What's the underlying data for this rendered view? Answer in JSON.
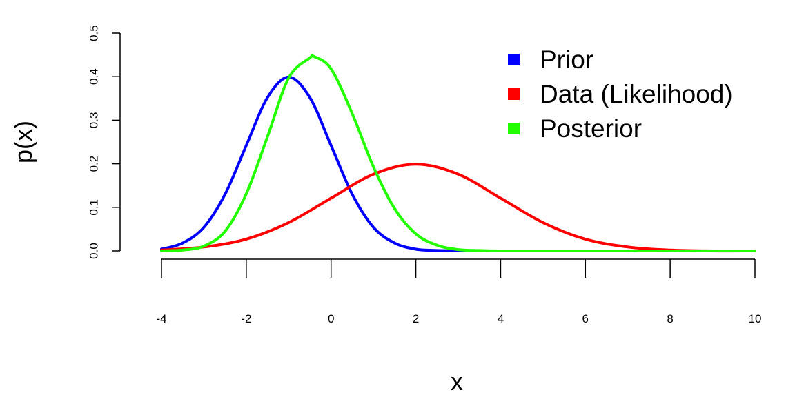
{
  "chart_data": {
    "type": "line",
    "xlabel": "x",
    "ylabel": "p(x)",
    "xlim": [
      -4,
      10
    ],
    "ylim": [
      0,
      0.5
    ],
    "x_ticks": [
      "-4",
      "-2",
      "0",
      "2",
      "4",
      "6",
      "8",
      "10"
    ],
    "y_ticks": [
      "0.0",
      "0.1",
      "0.2",
      "0.3",
      "0.4",
      "0.5"
    ],
    "grid": false,
    "legend_position": "top-right",
    "series": [
      {
        "name": "Prior",
        "color": "#0000ff",
        "x": [
          -4,
          -3.5,
          -3,
          -2.5,
          -2,
          -1.5,
          -1,
          -0.5,
          0,
          0.5,
          1,
          1.5,
          2,
          2.5,
          3,
          3.5,
          4,
          5,
          6,
          7,
          8,
          9,
          10
        ],
        "values": [
          0.004,
          0.018,
          0.054,
          0.13,
          0.242,
          0.352,
          0.399,
          0.352,
          0.242,
          0.13,
          0.054,
          0.018,
          0.004,
          0.001,
          0.0,
          0.0,
          0.0,
          0.0,
          0.0,
          0.0,
          0.0,
          0.0,
          0.0
        ]
      },
      {
        "name": " Data (Likelihood)",
        "color": "#ff0000",
        "x": [
          -4,
          -3,
          -2,
          -1,
          0,
          1,
          2,
          3,
          4,
          5,
          6,
          7,
          8,
          9,
          10
        ],
        "values": [
          0.002,
          0.009,
          0.027,
          0.065,
          0.121,
          0.176,
          0.199,
          0.176,
          0.121,
          0.065,
          0.027,
          0.009,
          0.002,
          0.0,
          0.0
        ]
      },
      {
        "name": "Posterior",
        "color": "#22ff00",
        "x": [
          -4,
          -3.5,
          -3,
          -2.5,
          -2,
          -1.5,
          -1,
          -0.5,
          -0.4,
          0,
          0.5,
          1,
          1.5,
          2,
          2.5,
          3,
          3.5,
          4,
          5,
          6,
          7,
          8,
          9,
          10
        ],
        "values": [
          0.0,
          0.002,
          0.011,
          0.045,
          0.131,
          0.262,
          0.397,
          0.443,
          0.446,
          0.418,
          0.315,
          0.193,
          0.097,
          0.039,
          0.013,
          0.003,
          0.001,
          0.0,
          0.0,
          0.0,
          0.0,
          0.0,
          0.0,
          0.0
        ]
      }
    ]
  }
}
